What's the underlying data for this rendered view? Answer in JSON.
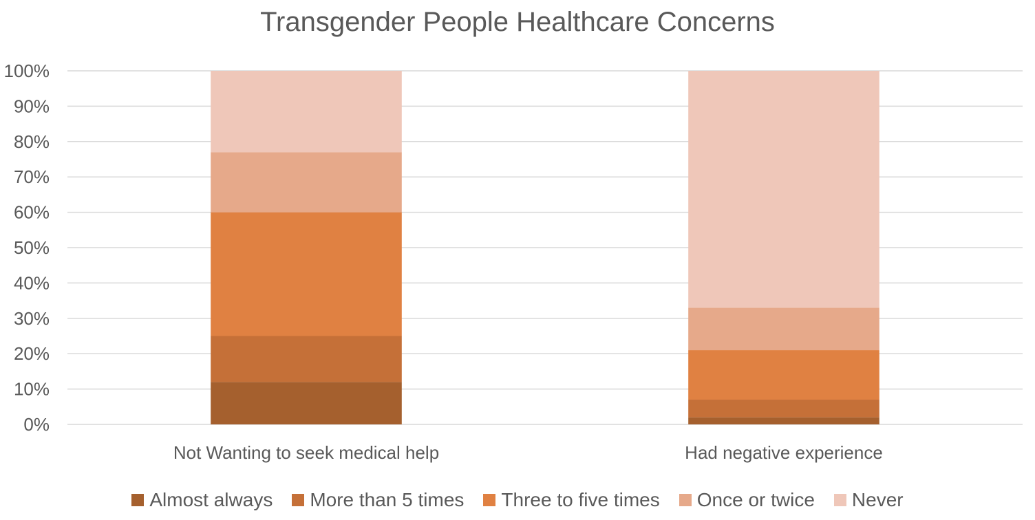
{
  "chart_data": {
    "type": "bar",
    "stacked": true,
    "title": "Transgender People Healthcare Concerns",
    "categories": [
      "Not Wanting to seek medical help",
      "Had negative experience"
    ],
    "series": [
      {
        "name": "Almost always",
        "color": "#A5602E",
        "values": [
          12,
          2
        ]
      },
      {
        "name": "More than 5 times",
        "color": "#C57038",
        "values": [
          13,
          5
        ]
      },
      {
        "name": "Three to five times",
        "color": "#E08142",
        "values": [
          35,
          14
        ]
      },
      {
        "name": "Once or twice",
        "color": "#E6A98A",
        "values": [
          17,
          12
        ]
      },
      {
        "name": "Never",
        "color": "#EFC7B9",
        "values": [
          23,
          67
        ]
      }
    ],
    "ylim": [
      0,
      100
    ],
    "yticks": [
      "0%",
      "10%",
      "20%",
      "30%",
      "40%",
      "50%",
      "60%",
      "70%",
      "80%",
      "90%",
      "100%"
    ],
    "grid": true,
    "legend_position": "bottom"
  }
}
